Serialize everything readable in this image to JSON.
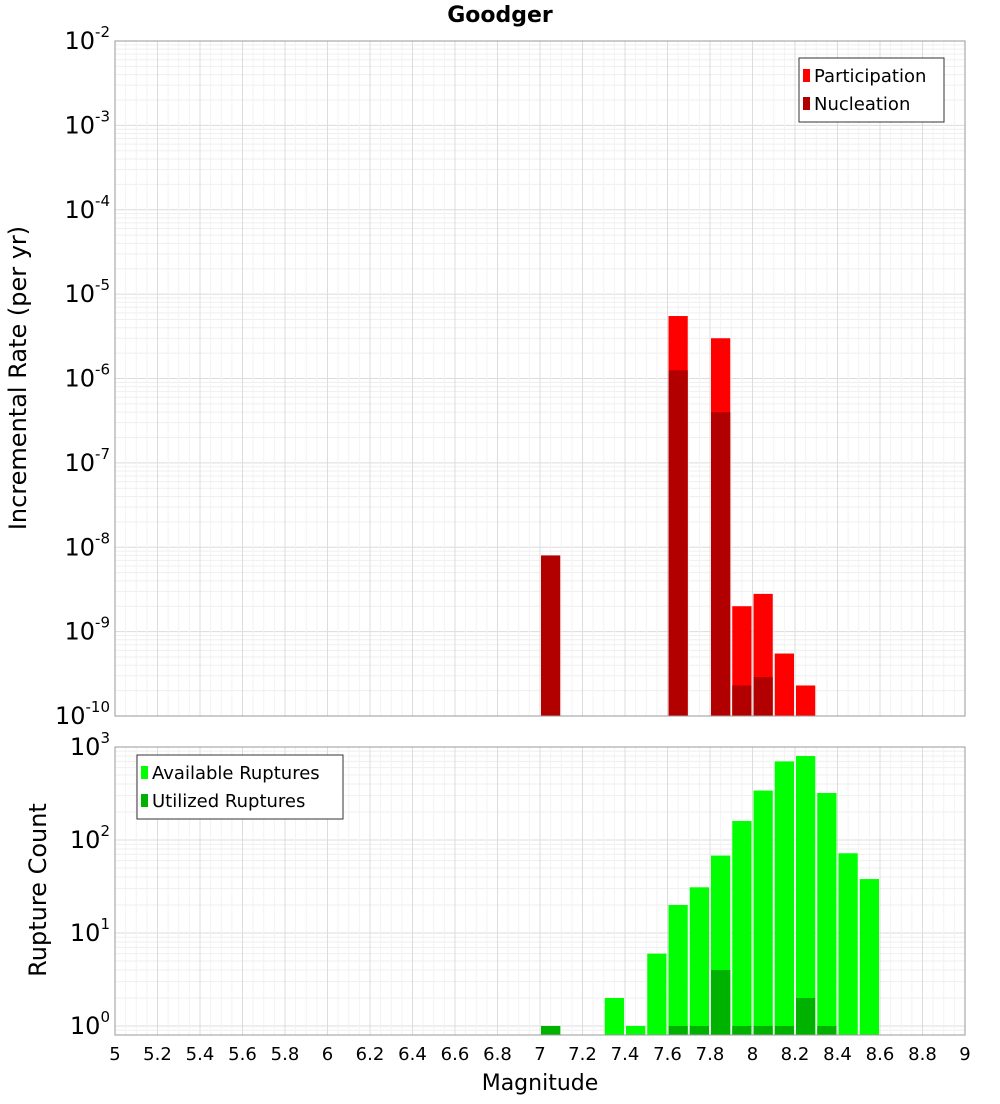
{
  "chart_data": {
    "title": "Goodger",
    "xlabel": "Magnitude",
    "xlim": [
      5,
      9
    ],
    "x_ticks": [
      "5",
      "5.2",
      "5.4",
      "5.6",
      "5.8",
      "6",
      "6.2",
      "6.4",
      "6.6",
      "6.8",
      "7",
      "7.2",
      "7.4",
      "7.6",
      "7.8",
      "8",
      "8.2",
      "8.4",
      "8.6",
      "8.8",
      "9"
    ],
    "bin_width": 0.1,
    "panels": [
      {
        "type": "bar",
        "scale": "log",
        "ylabel": "Incremental Rate (per yr)",
        "ylim": [
          1e-10,
          0.01
        ],
        "y_ticks": [
          {
            "base": "10",
            "exp": "-10"
          },
          {
            "base": "10",
            "exp": "-9"
          },
          {
            "base": "10",
            "exp": "-8"
          },
          {
            "base": "10",
            "exp": "-7"
          },
          {
            "base": "10",
            "exp": "-6"
          },
          {
            "base": "10",
            "exp": "-5"
          },
          {
            "base": "10",
            "exp": "-4"
          },
          {
            "base": "10",
            "exp": "-3"
          },
          {
            "base": "10",
            "exp": "-2"
          }
        ],
        "legend_position": "top-right",
        "grid": true,
        "series": [
          {
            "name": "Participation",
            "color": "#ff0000",
            "points": [
              [
                7.65,
                5.5e-06
              ],
              [
                7.85,
                3e-06
              ],
              [
                7.95,
                2e-09
              ],
              [
                8.05,
                2.8e-09
              ],
              [
                8.15,
                5.5e-10
              ],
              [
                8.25,
                2.3e-10
              ]
            ]
          },
          {
            "name": "Nucleation",
            "color": "#b20000",
            "points": [
              [
                7.05,
                8e-09
              ],
              [
                7.65,
                1.25e-06
              ],
              [
                7.85,
                4e-07
              ],
              [
                7.95,
                2.3e-10
              ],
              [
                8.05,
                2.9e-10
              ]
            ]
          }
        ]
      },
      {
        "type": "bar",
        "scale": "log",
        "ylabel": "Rupture Count",
        "ylim": [
          0.8,
          1000
        ],
        "y_ticks": [
          {
            "base": "10",
            "exp": "0",
            "value": 1
          },
          {
            "base": "10",
            "exp": "1",
            "value": 10
          },
          {
            "base": "10",
            "exp": "2",
            "value": 100
          },
          {
            "base": "10",
            "exp": "3",
            "value": 1000
          }
        ],
        "legend_position": "top-left",
        "grid": true,
        "series": [
          {
            "name": "Available Ruptures",
            "color": "#00ff00",
            "points": [
              [
                7.05,
                1
              ],
              [
                7.35,
                2
              ],
              [
                7.45,
                1
              ],
              [
                7.55,
                6
              ],
              [
                7.65,
                20
              ],
              [
                7.75,
                31
              ],
              [
                7.85,
                68
              ],
              [
                7.95,
                160
              ],
              [
                8.05,
                340
              ],
              [
                8.15,
                700
              ],
              [
                8.25,
                800
              ],
              [
                8.35,
                320
              ],
              [
                8.45,
                72
              ],
              [
                8.55,
                38
              ]
            ]
          },
          {
            "name": "Utilized Ruptures",
            "color": "#00b200",
            "points": [
              [
                7.05,
                1
              ],
              [
                7.65,
                1
              ],
              [
                7.75,
                1
              ],
              [
                7.85,
                4
              ],
              [
                7.95,
                1
              ],
              [
                8.05,
                1
              ],
              [
                8.15,
                1
              ],
              [
                8.25,
                2
              ],
              [
                8.35,
                1
              ]
            ]
          }
        ]
      }
    ]
  }
}
